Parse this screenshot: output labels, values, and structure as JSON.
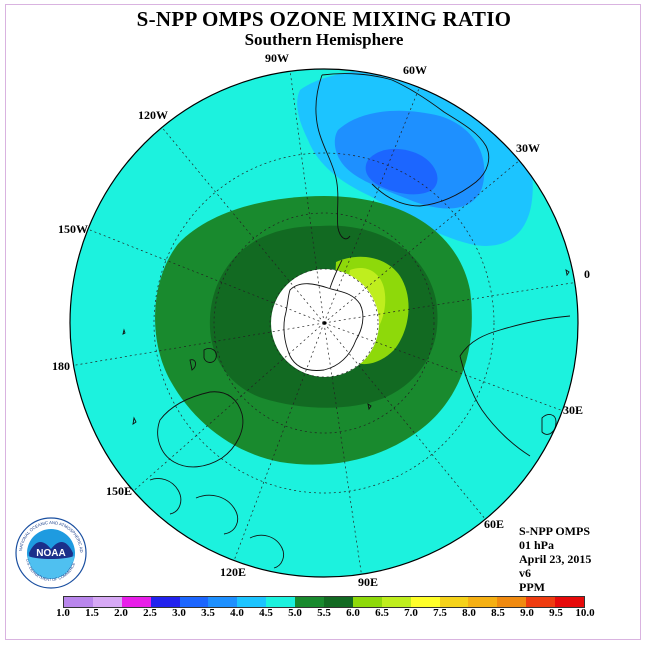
{
  "title": "S-NPP OMPS OZONE MIXING RATIO",
  "subtitle": "Southern Hemisphere",
  "map_projection": "south-polar-stereographic",
  "longitude_labels": [
    "90W",
    "60W",
    "30W",
    "0",
    "30E",
    "60E",
    "90E",
    "120E",
    "150E",
    "180",
    "150W",
    "120W"
  ],
  "info": {
    "product": "S-NPP OMPS",
    "pressure_level": "01 hPa",
    "date": "April 23, 2015",
    "version": "v6",
    "units": "PPM"
  },
  "logo": {
    "text": "NOAA",
    "ring_text": "NATIONAL OCEANIC AND ATMOSPHERIC ADMINISTRATION",
    "bottom_text": "U.S. DEPARTMENT OF COMMERCE"
  },
  "colorbar": {
    "labels": [
      "1.0",
      "1.5",
      "2.0",
      "2.5",
      "3.0",
      "3.5",
      "4.0",
      "4.5",
      "5.0",
      "5.5",
      "6.0",
      "6.5",
      "7.0",
      "7.5",
      "8.0",
      "8.5",
      "9.0",
      "9.5",
      "10.0"
    ],
    "colors": [
      "#b986ec",
      "#d7a9f5",
      "#e81ee8",
      "#2222ee",
      "#1c66ff",
      "#1e90ff",
      "#1cc4ff",
      "#1cf2de",
      "#198a2e",
      "#126a22",
      "#8ed90a",
      "#bfee1e",
      "#ffff2a",
      "#f5d21a",
      "#f5b014",
      "#f08a10",
      "#ee3c10",
      "#e60a0a",
      "#8b5a3c"
    ]
  },
  "legend_colors": {
    "background_field": "#1cf2de",
    "range_5_5": "#198a2e",
    "range_5_5_6": "#126a22",
    "range_6_6_5": "#8ed90a",
    "range_6_5_7": "#bfee1e",
    "range_4_4_5": "#1cc4ff",
    "range_3_5_4": "#1e90ff",
    "range_3_3_5": "#1c66ff",
    "polar_night_mask": "#ffffff"
  }
}
